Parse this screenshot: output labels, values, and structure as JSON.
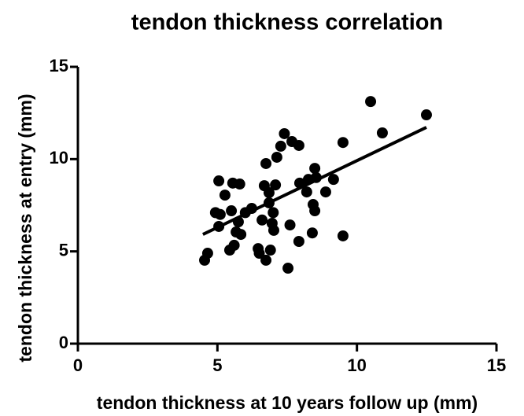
{
  "chart_data": {
    "type": "scatter",
    "title": "tendon thickness correlation",
    "xlabel": "tendon thickness at 10 years follow up (mm)",
    "ylabel": "tendon thickness at entry (mm)",
    "x": [
      4.54,
      4.65,
      5.05,
      4.93,
      5.1,
      5.05,
      5.27,
      5.55,
      5.8,
      5.5,
      5.44,
      5.6,
      5.67,
      5.75,
      5.84,
      6.0,
      6.23,
      6.46,
      6.5,
      6.6,
      6.68,
      6.74,
      6.74,
      6.85,
      6.85,
      6.9,
      6.96,
      7.0,
      7.02,
      7.13,
      7.08,
      7.27,
      7.4,
      7.53,
      7.6,
      7.67,
      7.92,
      7.92,
      7.95,
      8.2,
      8.26,
      8.4,
      8.43,
      8.49,
      8.49,
      8.54,
      8.88,
      9.16,
      9.5,
      9.5,
      10.49,
      10.91,
      12.49
    ],
    "values": [
      4.52,
      4.9,
      8.82,
      7.1,
      7.0,
      6.35,
      8.05,
      8.7,
      8.65,
      7.2,
      5.07,
      5.33,
      6.05,
      6.6,
      5.92,
      7.1,
      7.33,
      5.15,
      4.9,
      6.7,
      8.56,
      9.76,
      4.52,
      7.63,
      8.18,
      5.07,
      6.52,
      7.1,
      6.14,
      10.1,
      8.6,
      10.7,
      11.38,
      4.09,
      6.43,
      10.95,
      10.74,
      5.54,
      8.7,
      8.22,
      8.9,
      6.0,
      7.54,
      7.2,
      9.5,
      9.0,
      8.22,
      8.9,
      5.84,
      10.9,
      13.12,
      11.42,
      12.4
    ],
    "color": "#000000",
    "fit": {
      "x": [
        4.48,
        12.49
      ],
      "y": [
        5.92,
        11.72
      ]
    },
    "xlim": [
      0,
      15
    ],
    "ylim": [
      0,
      15
    ],
    "xticks": [
      0,
      5,
      10,
      15
    ],
    "yticks": [
      0,
      5,
      10,
      15
    ]
  }
}
